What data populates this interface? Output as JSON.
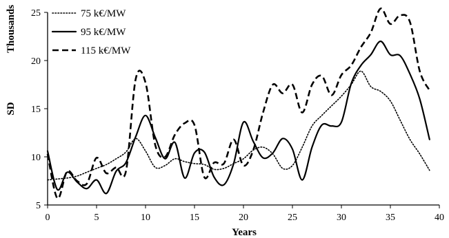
{
  "chart_data": {
    "type": "line",
    "title": "",
    "xlabel": "Years",
    "ylabel": "SD",
    "yunit_label": "Thousands",
    "xlim": [
      0,
      40
    ],
    "ylim": [
      5,
      25
    ],
    "xticks": [
      "0",
      "5",
      "10",
      "15",
      "20",
      "25",
      "30",
      "35",
      "40"
    ],
    "yticks": [
      "5",
      "10",
      "15",
      "20",
      "25"
    ],
    "grid": false,
    "legend_position": "top-left",
    "series": [
      {
        "name": "75 k€/MW",
        "style": "dotted",
        "x": [
          0,
          1,
          2,
          3,
          4,
          5,
          6,
          7,
          8,
          9,
          10,
          11,
          12,
          13,
          14,
          15,
          16,
          17,
          18,
          19,
          20,
          21,
          22,
          23,
          24,
          25,
          26,
          27,
          28,
          29,
          30,
          31,
          32,
          33,
          34,
          35,
          36,
          37,
          38,
          39
        ],
        "values": [
          7.6,
          7.7,
          7.8,
          8.0,
          8.4,
          8.8,
          9.2,
          9.8,
          10.5,
          11.9,
          10.6,
          8.9,
          9.1,
          9.8,
          9.5,
          9.3,
          9.2,
          8.7,
          8.8,
          9.3,
          9.8,
          10.7,
          11.0,
          10.3,
          8.8,
          9.1,
          11.0,
          13.2,
          14.3,
          15.3,
          16.3,
          17.5,
          18.9,
          17.3,
          16.8,
          15.8,
          13.8,
          11.8,
          10.3,
          8.6
        ]
      },
      {
        "name": "95 k€/MW",
        "style": "solid",
        "x": [
          0,
          1,
          2,
          3,
          4,
          5,
          6,
          7,
          8,
          9,
          10,
          11,
          12,
          13,
          14,
          15,
          16,
          17,
          18,
          19,
          20,
          21,
          22,
          23,
          24,
          25,
          26,
          27,
          28,
          29,
          30,
          31,
          32,
          33,
          34,
          35,
          36,
          37,
          38,
          39
        ],
        "values": [
          10.6,
          6.6,
          8.4,
          7.4,
          6.7,
          7.6,
          6.2,
          8.5,
          9.4,
          12.1,
          14.3,
          12.0,
          9.8,
          11.5,
          7.8,
          10.4,
          10.5,
          7.9,
          7.1,
          9.3,
          13.6,
          11.6,
          9.9,
          10.4,
          11.9,
          10.8,
          7.6,
          11.0,
          13.3,
          13.2,
          13.6,
          17.6,
          19.5,
          20.6,
          22.0,
          20.6,
          20.5,
          18.6,
          16.0,
          11.8
        ]
      },
      {
        "name": "115 k€/MW",
        "style": "dashed",
        "x": [
          0,
          1,
          2,
          3,
          4,
          5,
          6,
          7,
          8,
          9,
          10,
          11,
          12,
          13,
          14,
          15,
          16,
          17,
          18,
          19,
          20,
          21,
          22,
          23,
          24,
          25,
          26,
          27,
          28,
          29,
          30,
          31,
          32,
          33,
          34,
          35,
          36,
          37,
          38,
          39
        ],
        "values": [
          10.3,
          5.7,
          8.5,
          7.5,
          7.2,
          9.9,
          8.3,
          8.9,
          8.5,
          18.1,
          17.7,
          11.2,
          10.0,
          12.3,
          13.5,
          13.3,
          7.9,
          9.4,
          9.3,
          11.8,
          9.1,
          10.7,
          14.6,
          17.5,
          16.6,
          17.5,
          14.6,
          17.5,
          18.4,
          16.4,
          18.5,
          19.5,
          21.4,
          22.9,
          25.4,
          23.8,
          24.7,
          24.0,
          18.9,
          16.9
        ]
      }
    ]
  }
}
